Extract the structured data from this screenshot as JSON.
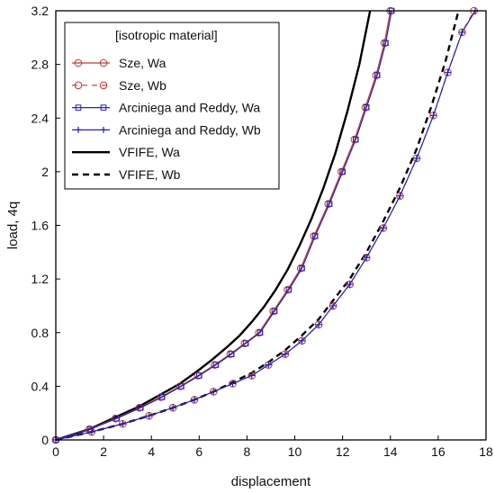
{
  "chart_data": {
    "type": "line",
    "title": "",
    "xlabel": "displacement",
    "ylabel": "load, 4q",
    "xlim": [
      0,
      18
    ],
    "ylim": [
      0,
      3.2
    ],
    "x_ticks": [
      0,
      2,
      4,
      6,
      8,
      10,
      12,
      14,
      16,
      18
    ],
    "y_ticks": [
      0,
      0.4,
      0.8,
      1.2,
      1.6,
      2,
      2.4,
      2.8,
      3.2
    ],
    "x_tick_labels": [
      "0",
      "2",
      "4",
      "6",
      "8",
      "10",
      "12",
      "14",
      "16",
      "18"
    ],
    "y_tick_labels": [
      "0",
      "0.4",
      "0.8",
      "1.2",
      "1.6",
      "2",
      "2.4",
      "2.8",
      "3.2"
    ],
    "grid": false,
    "legend_title": "[isotropic material]",
    "legend_position": "top-left",
    "series": [
      {
        "name": "Sze, Wa",
        "color": "#c0392b",
        "style": "solid",
        "marker": "circle",
        "points": [
          [
            0,
            0
          ],
          [
            1.4,
            0.08
          ],
          [
            2.5,
            0.16
          ],
          [
            3.5,
            0.24
          ],
          [
            4.4,
            0.32
          ],
          [
            5.2,
            0.4
          ],
          [
            5.95,
            0.48
          ],
          [
            6.65,
            0.56
          ],
          [
            7.3,
            0.64
          ],
          [
            7.9,
            0.72
          ],
          [
            8.5,
            0.8
          ],
          [
            9.1,
            0.96
          ],
          [
            9.7,
            1.12
          ],
          [
            10.25,
            1.28
          ],
          [
            10.8,
            1.52
          ],
          [
            11.4,
            1.76
          ],
          [
            11.95,
            2.0
          ],
          [
            12.5,
            2.24
          ],
          [
            12.95,
            2.48
          ],
          [
            13.4,
            2.72
          ],
          [
            13.75,
            2.96
          ],
          [
            14.0,
            3.2
          ]
        ]
      },
      {
        "name": "Sze, Wb",
        "color": "#c0392b",
        "style": "dashed",
        "marker": "circle",
        "points": [
          [
            0,
            0
          ],
          [
            1.5,
            0.06
          ],
          [
            2.8,
            0.12
          ],
          [
            3.9,
            0.18
          ],
          [
            4.9,
            0.24
          ],
          [
            5.8,
            0.3
          ],
          [
            6.6,
            0.36
          ],
          [
            7.4,
            0.42
          ],
          [
            8.2,
            0.48
          ],
          [
            8.9,
            0.56
          ],
          [
            9.6,
            0.64
          ],
          [
            10.3,
            0.74
          ],
          [
            11.0,
            0.86
          ],
          [
            11.6,
            1.0
          ],
          [
            12.3,
            1.16
          ],
          [
            13.0,
            1.36
          ],
          [
            13.7,
            1.58
          ],
          [
            14.4,
            1.82
          ],
          [
            15.1,
            2.1
          ],
          [
            15.8,
            2.42
          ],
          [
            16.4,
            2.74
          ],
          [
            17.0,
            3.04
          ],
          [
            17.5,
            3.2
          ]
        ]
      },
      {
        "name": "Arciniega and Reddy, Wa",
        "color": "#2222bb",
        "style": "solid",
        "marker": "square",
        "points": [
          [
            0,
            0
          ],
          [
            1.45,
            0.08
          ],
          [
            2.55,
            0.16
          ],
          [
            3.55,
            0.24
          ],
          [
            4.45,
            0.32
          ],
          [
            5.25,
            0.4
          ],
          [
            6.0,
            0.48
          ],
          [
            6.7,
            0.56
          ],
          [
            7.35,
            0.64
          ],
          [
            7.95,
            0.72
          ],
          [
            8.55,
            0.8
          ],
          [
            9.15,
            0.96
          ],
          [
            9.75,
            1.12
          ],
          [
            10.3,
            1.28
          ],
          [
            10.85,
            1.52
          ],
          [
            11.45,
            1.76
          ],
          [
            12.0,
            2.0
          ],
          [
            12.55,
            2.24
          ],
          [
            13.0,
            2.48
          ],
          [
            13.45,
            2.72
          ],
          [
            13.8,
            2.96
          ],
          [
            14.05,
            3.2
          ]
        ]
      },
      {
        "name": "Arciniega and Reddy, Wb",
        "color": "#2222bb",
        "style": "solid",
        "marker": "plus",
        "points": [
          [
            0,
            0
          ],
          [
            1.5,
            0.06
          ],
          [
            2.8,
            0.12
          ],
          [
            3.9,
            0.18
          ],
          [
            4.9,
            0.24
          ],
          [
            5.8,
            0.3
          ],
          [
            6.6,
            0.36
          ],
          [
            7.4,
            0.42
          ],
          [
            8.2,
            0.48
          ],
          [
            8.9,
            0.56
          ],
          [
            9.6,
            0.64
          ],
          [
            10.3,
            0.74
          ],
          [
            11.0,
            0.86
          ],
          [
            11.6,
            1.0
          ],
          [
            12.3,
            1.16
          ],
          [
            13.0,
            1.36
          ],
          [
            13.7,
            1.58
          ],
          [
            14.4,
            1.82
          ],
          [
            15.1,
            2.1
          ],
          [
            15.8,
            2.42
          ],
          [
            16.4,
            2.74
          ],
          [
            17.0,
            3.04
          ],
          [
            17.55,
            3.2
          ]
        ]
      },
      {
        "name": "VFIFE, Wa",
        "color": "#000000",
        "style": "solid",
        "marker": "none",
        "points": [
          [
            0,
            0
          ],
          [
            1.4,
            0.08
          ],
          [
            2.5,
            0.17
          ],
          [
            3.5,
            0.25
          ],
          [
            4.4,
            0.34
          ],
          [
            5.2,
            0.42
          ],
          [
            5.9,
            0.51
          ],
          [
            6.55,
            0.6
          ],
          [
            7.15,
            0.69
          ],
          [
            7.7,
            0.78
          ],
          [
            8.2,
            0.88
          ],
          [
            8.7,
            0.99
          ],
          [
            9.2,
            1.12
          ],
          [
            9.7,
            1.27
          ],
          [
            10.2,
            1.45
          ],
          [
            10.7,
            1.65
          ],
          [
            11.2,
            1.88
          ],
          [
            11.7,
            2.14
          ],
          [
            12.2,
            2.45
          ],
          [
            12.7,
            2.8
          ],
          [
            13.15,
            3.2
          ]
        ]
      },
      {
        "name": "VFIFE, Wb",
        "color": "#000000",
        "style": "dashed",
        "marker": "none",
        "points": [
          [
            0,
            0
          ],
          [
            1.5,
            0.06
          ],
          [
            2.8,
            0.12
          ],
          [
            3.9,
            0.18
          ],
          [
            4.9,
            0.24
          ],
          [
            5.8,
            0.3
          ],
          [
            6.6,
            0.36
          ],
          [
            7.4,
            0.43
          ],
          [
            8.2,
            0.5
          ],
          [
            8.9,
            0.58
          ],
          [
            9.6,
            0.67
          ],
          [
            10.3,
            0.78
          ],
          [
            11.0,
            0.9
          ],
          [
            11.6,
            1.04
          ],
          [
            12.3,
            1.2
          ],
          [
            13.0,
            1.4
          ],
          [
            13.7,
            1.63
          ],
          [
            14.4,
            1.88
          ],
          [
            15.1,
            2.17
          ],
          [
            15.7,
            2.48
          ],
          [
            16.3,
            2.82
          ],
          [
            16.85,
            3.2
          ]
        ]
      }
    ]
  }
}
